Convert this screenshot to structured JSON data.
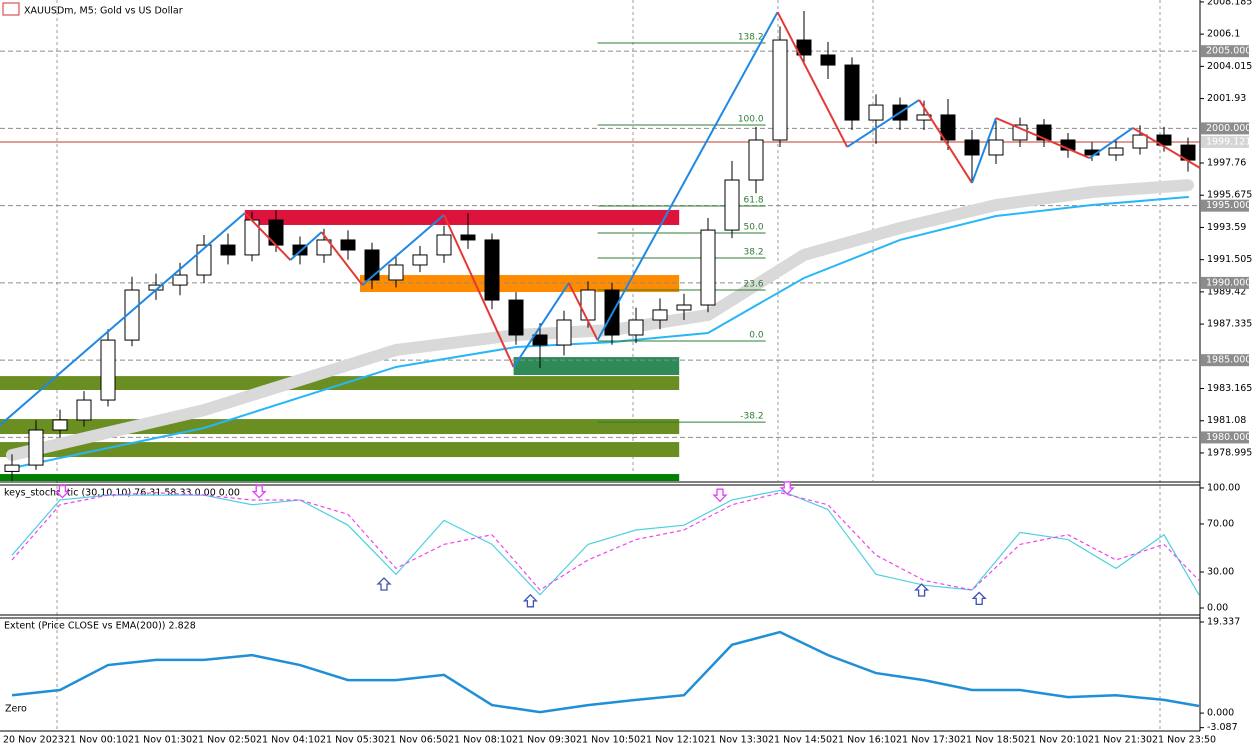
{
  "chart_data": [
    {
      "type": "candlestick",
      "title": "XAUUSDm, M5:  Gold vs US Dollar",
      "up_color": "#ffffff",
      "down_color": "#000000",
      "ylim": [
        1977.18,
        2008.31
      ],
      "yticks": [
        2008.185,
        2006.1,
        2004.015,
        2001.93,
        1997.76,
        1995.675,
        1993.59,
        1991.505,
        1989.42,
        1987.335,
        1983.165,
        1981.08,
        1978.995
      ],
      "x_tick_labels": [
        "20 Nov 2023",
        "21 Nov 00:10",
        "21 Nov 01:30",
        "21 Nov 02:50",
        "21 Nov 04:10",
        "21 Nov 05:30",
        "21 Nov 06:50",
        "21 Nov 08:10",
        "21 Nov 09:30",
        "21 Nov 10:50",
        "21 Nov 12:10",
        "21 Nov 13:30",
        "21 Nov 14:50",
        "21 Nov 16:10",
        "21 Nov 17:30",
        "21 Nov 18:50",
        "21 Nov 20:10",
        "21 Nov 21:30",
        "21 Nov 23:50"
      ],
      "open": [
        1977.8,
        1978.21,
        1980.48,
        1981.13,
        1982.42,
        1986.3,
        1989.54,
        1989.86,
        1990.51,
        1992.45,
        1991.81,
        1994.07,
        1992.45,
        1991.81,
        1992.78,
        1992.13,
        1990.19,
        1991.16,
        1991.81,
        1993.1,
        1992.78,
        1988.89,
        1986.63,
        1985.98,
        1987.6,
        1989.54,
        1986.63,
        1987.6,
        1988.25,
        1988.57,
        1993.42,
        1996.66,
        1999.25,
        2005.72,
        2004.75,
        2004.1,
        2000.54,
        2001.51,
        2000.54,
        2000.87,
        1999.25,
        1998.28,
        1999.25,
        2000.22,
        1999.25,
        1998.6,
        1998.28,
        1998.73,
        1999.57,
        1998.92
      ],
      "high": [
        1978.9,
        1981.1,
        1981.8,
        1983.0,
        1987.0,
        1990.4,
        1990.6,
        1991.3,
        1993.1,
        1993.2,
        1994.6,
        1994.7,
        1993.0,
        1993.5,
        1993.4,
        1992.6,
        1991.8,
        1992.4,
        1993.7,
        1994.5,
        1993.2,
        1989.4,
        1987.4,
        1988.2,
        1990.1,
        1990.0,
        1988.4,
        1989.0,
        1989.3,
        1994.2,
        1997.9,
        2000.1,
        2006.6,
        2007.6,
        2005.6,
        2004.6,
        2002.2,
        2002.0,
        2001.8,
        2001.9,
        1999.9,
        2000.5,
        2000.7,
        2000.6,
        1999.7,
        1999.1,
        1999.2,
        2000.2,
        2000.1,
        1999.4
      ],
      "low": [
        1977.2,
        1977.9,
        1980.0,
        1980.7,
        1982.0,
        1985.9,
        1988.9,
        1989.2,
        1990.0,
        1991.2,
        1991.4,
        1992.0,
        1991.2,
        1991.3,
        1991.5,
        1989.6,
        1989.7,
        1990.7,
        1991.3,
        1992.2,
        1988.3,
        1986.0,
        1984.5,
        1985.3,
        1987.1,
        1986.0,
        1986.1,
        1987.0,
        1987.6,
        1988.1,
        1992.9,
        1995.8,
        1998.8,
        2004.1,
        2003.2,
        1999.9,
        1999.0,
        1999.9,
        1999.9,
        1998.6,
        1996.6,
        1997.7,
        1998.8,
        1998.8,
        1998.1,
        1997.9,
        1997.9,
        1998.3,
        1998.5,
        1997.2
      ],
      "close": [
        1978.21,
        1980.48,
        1981.13,
        1982.42,
        1986.3,
        1989.54,
        1989.86,
        1990.51,
        1992.45,
        1991.81,
        1994.07,
        1992.45,
        1991.81,
        1992.78,
        1992.13,
        1990.19,
        1991.16,
        1991.81,
        1993.1,
        1992.78,
        1988.89,
        1986.63,
        1985.98,
        1987.6,
        1989.54,
        1986.63,
        1987.6,
        1988.25,
        1988.57,
        1993.42,
        1996.66,
        1999.25,
        2005.72,
        2004.75,
        2004.1,
        2000.54,
        2001.51,
        2000.54,
        2000.87,
        1999.25,
        1998.28,
        1999.25,
        2000.22,
        1999.25,
        1998.6,
        1998.28,
        1998.73,
        1999.57,
        1998.92,
        1997.95
      ],
      "zones": [
        {
          "x": [
            9.7,
            27.8
          ],
          "y": [
            1994.72,
            1993.75
          ],
          "color": "#dc143c"
        },
        {
          "x": [
            14.5,
            27.8
          ],
          "y": [
            1990.51,
            1989.41
          ],
          "color": "#ff8c00"
        },
        {
          "x": [
            20.9,
            27.8
          ],
          "y": [
            1985.2,
            1984.04
          ],
          "color": "#2e8b57"
        },
        {
          "x": [
            -0.5,
            27.8
          ],
          "y": [
            1983.97,
            1983.07
          ],
          "color": "#6b8e23"
        },
        {
          "x": [
            -0.5,
            27.8
          ],
          "y": [
            1981.19,
            1980.22
          ],
          "color": "#6b8e23"
        },
        {
          "x": [
            -0.5,
            27.8
          ],
          "y": [
            1979.7,
            1978.73
          ],
          "color": "#6b8e23"
        },
        {
          "x": [
            -0.5,
            27.8
          ],
          "y": [
            1977.63,
            1977.18
          ],
          "color": "#008000"
        }
      ],
      "ma": [
        {
          "color": "#d9d9d9",
          "width": 12,
          "x": [
            0,
            8,
            16,
            21,
            25,
            29,
            33,
            37,
            41,
            45,
            49
          ],
          "values": [
            1978.86,
            1981.77,
            1985.66,
            1986.63,
            1986.95,
            1987.92,
            1991.81,
            1993.55,
            1995.04,
            1995.88,
            1996.33
          ]
        },
        {
          "color": "#29b6f6",
          "width": 2,
          "x": [
            0,
            8,
            16,
            21,
            25,
            29,
            33,
            37,
            41,
            45,
            49
          ],
          "values": [
            1978.02,
            1980.61,
            1984.56,
            1985.85,
            1986.17,
            1986.76,
            1990.32,
            1992.78,
            1994.33,
            1995.04,
            1995.56
          ]
        }
      ],
      "fib": {
        "color": "#2e7d32",
        "x": [
          24.4,
          31.4
        ],
        "levels": [
          {
            "label": "138.2",
            "price": 2005.53
          },
          {
            "label": "100.0",
            "price": 2000.22
          },
          {
            "label": "61.8",
            "price": 1994.98
          },
          {
            "label": "50.0",
            "price": 1993.23
          },
          {
            "label": "38.2",
            "price": 1991.61
          },
          {
            "label": "23.6",
            "price": 1989.54
          },
          {
            "label": "0.0",
            "price": 1986.24
          },
          {
            "label": "-38.2",
            "price": 1980.99
          }
        ]
      },
      "zigzag": {
        "up_color": "#1e88e5",
        "down_color": "#e53935",
        "points": [
          {
            "x": -0.5,
            "price": 1980.8
          },
          {
            "x": 9.7,
            "price": 1994.52
          },
          {
            "x": 11.6,
            "price": 1991.48
          },
          {
            "x": 12.9,
            "price": 1993.29
          },
          {
            "x": 14.6,
            "price": 1989.86
          },
          {
            "x": 18.0,
            "price": 1994.4
          },
          {
            "x": 20.9,
            "price": 1984.55
          },
          {
            "x": 23.2,
            "price": 1989.99
          },
          {
            "x": 24.4,
            "price": 1986.3
          },
          {
            "x": 31.9,
            "price": 2007.53
          },
          {
            "x": 34.8,
            "price": 1998.8
          },
          {
            "x": 37.8,
            "price": 2001.84
          },
          {
            "x": 40.0,
            "price": 1996.47
          },
          {
            "x": 41.0,
            "price": 2000.67
          },
          {
            "x": 44.9,
            "price": 1998.08
          },
          {
            "x": 46.7,
            "price": 2000.03
          },
          {
            "x": 49.5,
            "price": 1997.44
          }
        ]
      },
      "levels": [
        {
          "value": 2005,
          "label": "2005.000"
        },
        {
          "value": 2000,
          "label": "2000.000"
        },
        {
          "value": 1995,
          "label": "1995.000"
        },
        {
          "value": 1990,
          "label": "1990.000"
        },
        {
          "value": 1985,
          "label": "1985.000"
        },
        {
          "value": 1980,
          "label": "1980.000"
        }
      ],
      "current_price": {
        "value": 1999.121,
        "label": "1999.121",
        "color": "#c0392b"
      }
    },
    {
      "type": "line",
      "title": "keys_stochastic (30,10,10) 76.31 58.33 0.00 0.00",
      "ylim": [
        -5,
        103.3
      ],
      "yticks": [
        {
          "value": 100,
          "label": "100.00"
        },
        {
          "value": 70,
          "label": "70.00"
        },
        {
          "value": 30,
          "label": "30.00"
        },
        {
          "value": 0,
          "label": "0.00"
        }
      ],
      "x": [
        0,
        2,
        4,
        6,
        8,
        10,
        12,
        14,
        16,
        18,
        20,
        22,
        24,
        26,
        28,
        30,
        32,
        34,
        36,
        38,
        40,
        42,
        44,
        46,
        48,
        49.5
      ],
      "series": [
        {
          "color": "#4dd0e1",
          "dashed": false,
          "values": [
            44,
            90,
            94,
            94,
            94,
            86,
            90,
            69,
            28,
            73,
            53,
            11,
            53,
            65,
            69,
            90,
            98,
            82,
            28,
            19,
            15,
            63,
            57,
            33,
            61,
            11
          ]
        },
        {
          "color": "#ee44ee",
          "dashed": true,
          "values": [
            40,
            86,
            94,
            96,
            94,
            90,
            90,
            78,
            33,
            53,
            61,
            15,
            40,
            57,
            65,
            86,
            96,
            86,
            44,
            23,
            15,
            53,
            61,
            40,
            53,
            23
          ]
        }
      ],
      "signals": [
        {
          "x": 2.1,
          "value": 97,
          "dir": "down",
          "color": "#e040fb"
        },
        {
          "x": 10.3,
          "value": 97,
          "dir": "down",
          "color": "#e040fb"
        },
        {
          "x": 29.5,
          "value": 94,
          "dir": "down",
          "color": "#e040fb"
        },
        {
          "x": 32.3,
          "value": 100,
          "dir": "down",
          "color": "#e040fb"
        },
        {
          "x": 15.5,
          "value": 20,
          "dir": "up",
          "color": "#3f51b5"
        },
        {
          "x": 21.6,
          "value": 6,
          "dir": "up",
          "color": "#3f51b5"
        },
        {
          "x": 37.9,
          "value": 15,
          "dir": "up",
          "color": "#3f51b5"
        },
        {
          "x": 40.3,
          "value": 8,
          "dir": "up",
          "color": "#3f51b5"
        }
      ]
    },
    {
      "type": "line",
      "title": "Extent (Price CLOSE vs EMA(200)) 2.828",
      "zero_label": "Zero",
      "ylim": [
        -3.8,
        20.4
      ],
      "yticks": [
        19.337,
        {
          "value": 0,
          "label": "0.000"
        },
        -3.087
      ],
      "x": [
        0,
        2,
        4,
        6,
        8,
        10,
        12,
        14,
        16,
        18,
        20,
        22,
        24,
        26,
        28,
        30,
        32,
        34,
        36,
        38,
        40,
        42,
        44,
        46,
        48,
        49.5
      ],
      "series": [
        {
          "color": "#1f8fd6",
          "dashed": false,
          "values": [
            3.8,
            4.9,
            10.2,
            11.3,
            11.3,
            12.3,
            10.2,
            7.0,
            7.0,
            8.1,
            1.7,
            0.2,
            1.7,
            2.8,
            3.8,
            14.5,
            17.2,
            12.3,
            8.5,
            7.0,
            4.9,
            4.9,
            3.4,
            3.8,
            2.8,
            1.5
          ]
        }
      ]
    }
  ]
}
